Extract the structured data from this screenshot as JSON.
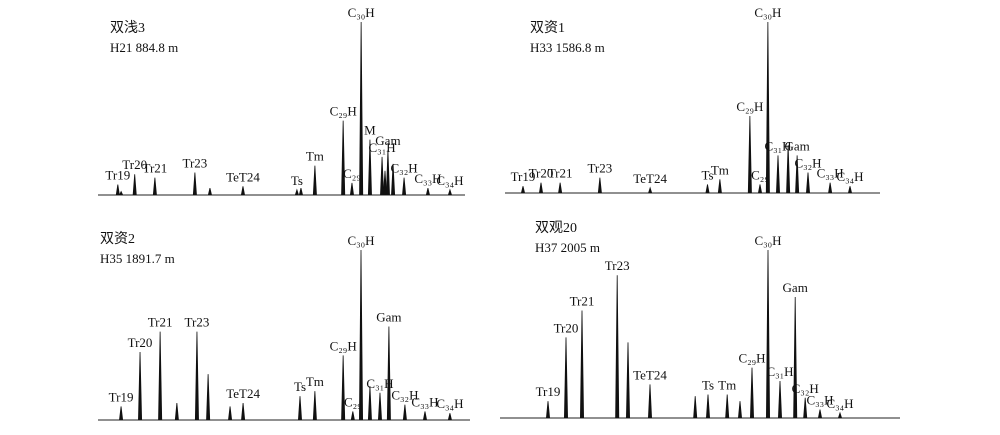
{
  "chart_data": [
    {
      "type": "chromatogram",
      "title": "双浅3",
      "subtitle": "H21 884.8 m",
      "xlim": [
        0,
        100
      ],
      "ylim": [
        0,
        100
      ],
      "categories": [
        "Tr19",
        null,
        "Tr20",
        "Tr21",
        "Tr23",
        null,
        "TeT24",
        "Ts",
        null,
        "Tm",
        "C₂₉H",
        "C₂₉",
        "C₃₀H",
        "M",
        "C₃₁H",
        null,
        "Gam",
        null,
        "C₃₂H",
        "C₃₃H",
        "C₃₄H"
      ],
      "x": [
        5.4,
        6.3,
        10,
        15.5,
        26.4,
        30.5,
        39.5,
        54.2,
        55.3,
        59.1,
        66.8,
        69.2,
        71.7,
        74.1,
        77.4,
        78.2,
        79,
        80.4,
        83.4,
        89.9,
        95.9
      ],
      "values": [
        6,
        2,
        12,
        10,
        13,
        4,
        5,
        3,
        4,
        17,
        43,
        7,
        100,
        32,
        22,
        14,
        26,
        18,
        10,
        4,
        3
      ]
    },
    {
      "type": "chromatogram",
      "title": "双资1",
      "subtitle": "H33 1586.8 m",
      "xlim": [
        0,
        100
      ],
      "ylim": [
        0,
        100
      ],
      "categories": [
        "Tr19",
        "Tr20",
        "Tr21",
        "Tr23",
        "TeT24",
        "Ts",
        "Tm",
        "C₂₉H",
        "C₂₉",
        "C₃₀H",
        "C₃₁H",
        null,
        "Gam",
        "C₃₂H",
        "C₃₃H",
        "C₃₄H"
      ],
      "x": [
        4.8,
        9.6,
        14.7,
        25.3,
        38.7,
        54,
        57.3,
        65.3,
        68,
        70.1,
        72.8,
        75.5,
        77.9,
        80.8,
        86.7,
        92
      ],
      "values": [
        4,
        6,
        6,
        9,
        3,
        5,
        8,
        45,
        5,
        100,
        22,
        28,
        22,
        12,
        6,
        4
      ]
    },
    {
      "type": "chromatogram",
      "title": "双资2",
      "subtitle": "H35 1891.7 m",
      "xlim": [
        0,
        100
      ],
      "ylim": [
        0,
        100
      ],
      "categories": [
        "Tr19",
        "Tr20",
        "Tr21",
        null,
        "Tr23",
        null,
        null,
        "TeT24",
        "Ts",
        "Tm",
        "C₂₉H",
        "C₂₉",
        "C₃₀H",
        null,
        "C₃₁H",
        "Gam",
        "C₃₂H",
        "C₃₃H",
        "C₃₄H"
      ],
      "x": [
        6.2,
        11.3,
        16.7,
        21.2,
        26.6,
        29.6,
        35.5,
        39,
        54.3,
        58.3,
        65.9,
        68.5,
        70.7,
        73.1,
        75.8,
        78.2,
        82.5,
        87.9,
        94.6
      ],
      "values": [
        8,
        40,
        52,
        10,
        52,
        27,
        8,
        10,
        14,
        17,
        38,
        5,
        100,
        20,
        16,
        55,
        9,
        5,
        4
      ]
    },
    {
      "type": "chromatogram",
      "title": "双观20",
      "subtitle": "H37 2005 m",
      "xlim": [
        0,
        100
      ],
      "ylim": [
        0,
        100
      ],
      "categories": [
        "Tr19",
        "Tr20",
        "Tr21",
        "Tr23",
        null,
        "TeT24",
        null,
        "Ts",
        "Tm",
        null,
        "C₂₉H",
        "C₃₀H",
        "C₃₁H",
        "Gam",
        "C₃₂H",
        "C₃₃H",
        "C₃₄H"
      ],
      "x": [
        12,
        16.5,
        20.5,
        29.3,
        32,
        37.5,
        48.8,
        52,
        56.8,
        60,
        63,
        67,
        70,
        73.8,
        76.3,
        80,
        85
      ],
      "values": [
        10,
        48,
        64,
        85,
        45,
        20,
        13,
        14,
        14,
        10,
        30,
        100,
        22,
        72,
        12,
        5,
        3
      ]
    }
  ]
}
